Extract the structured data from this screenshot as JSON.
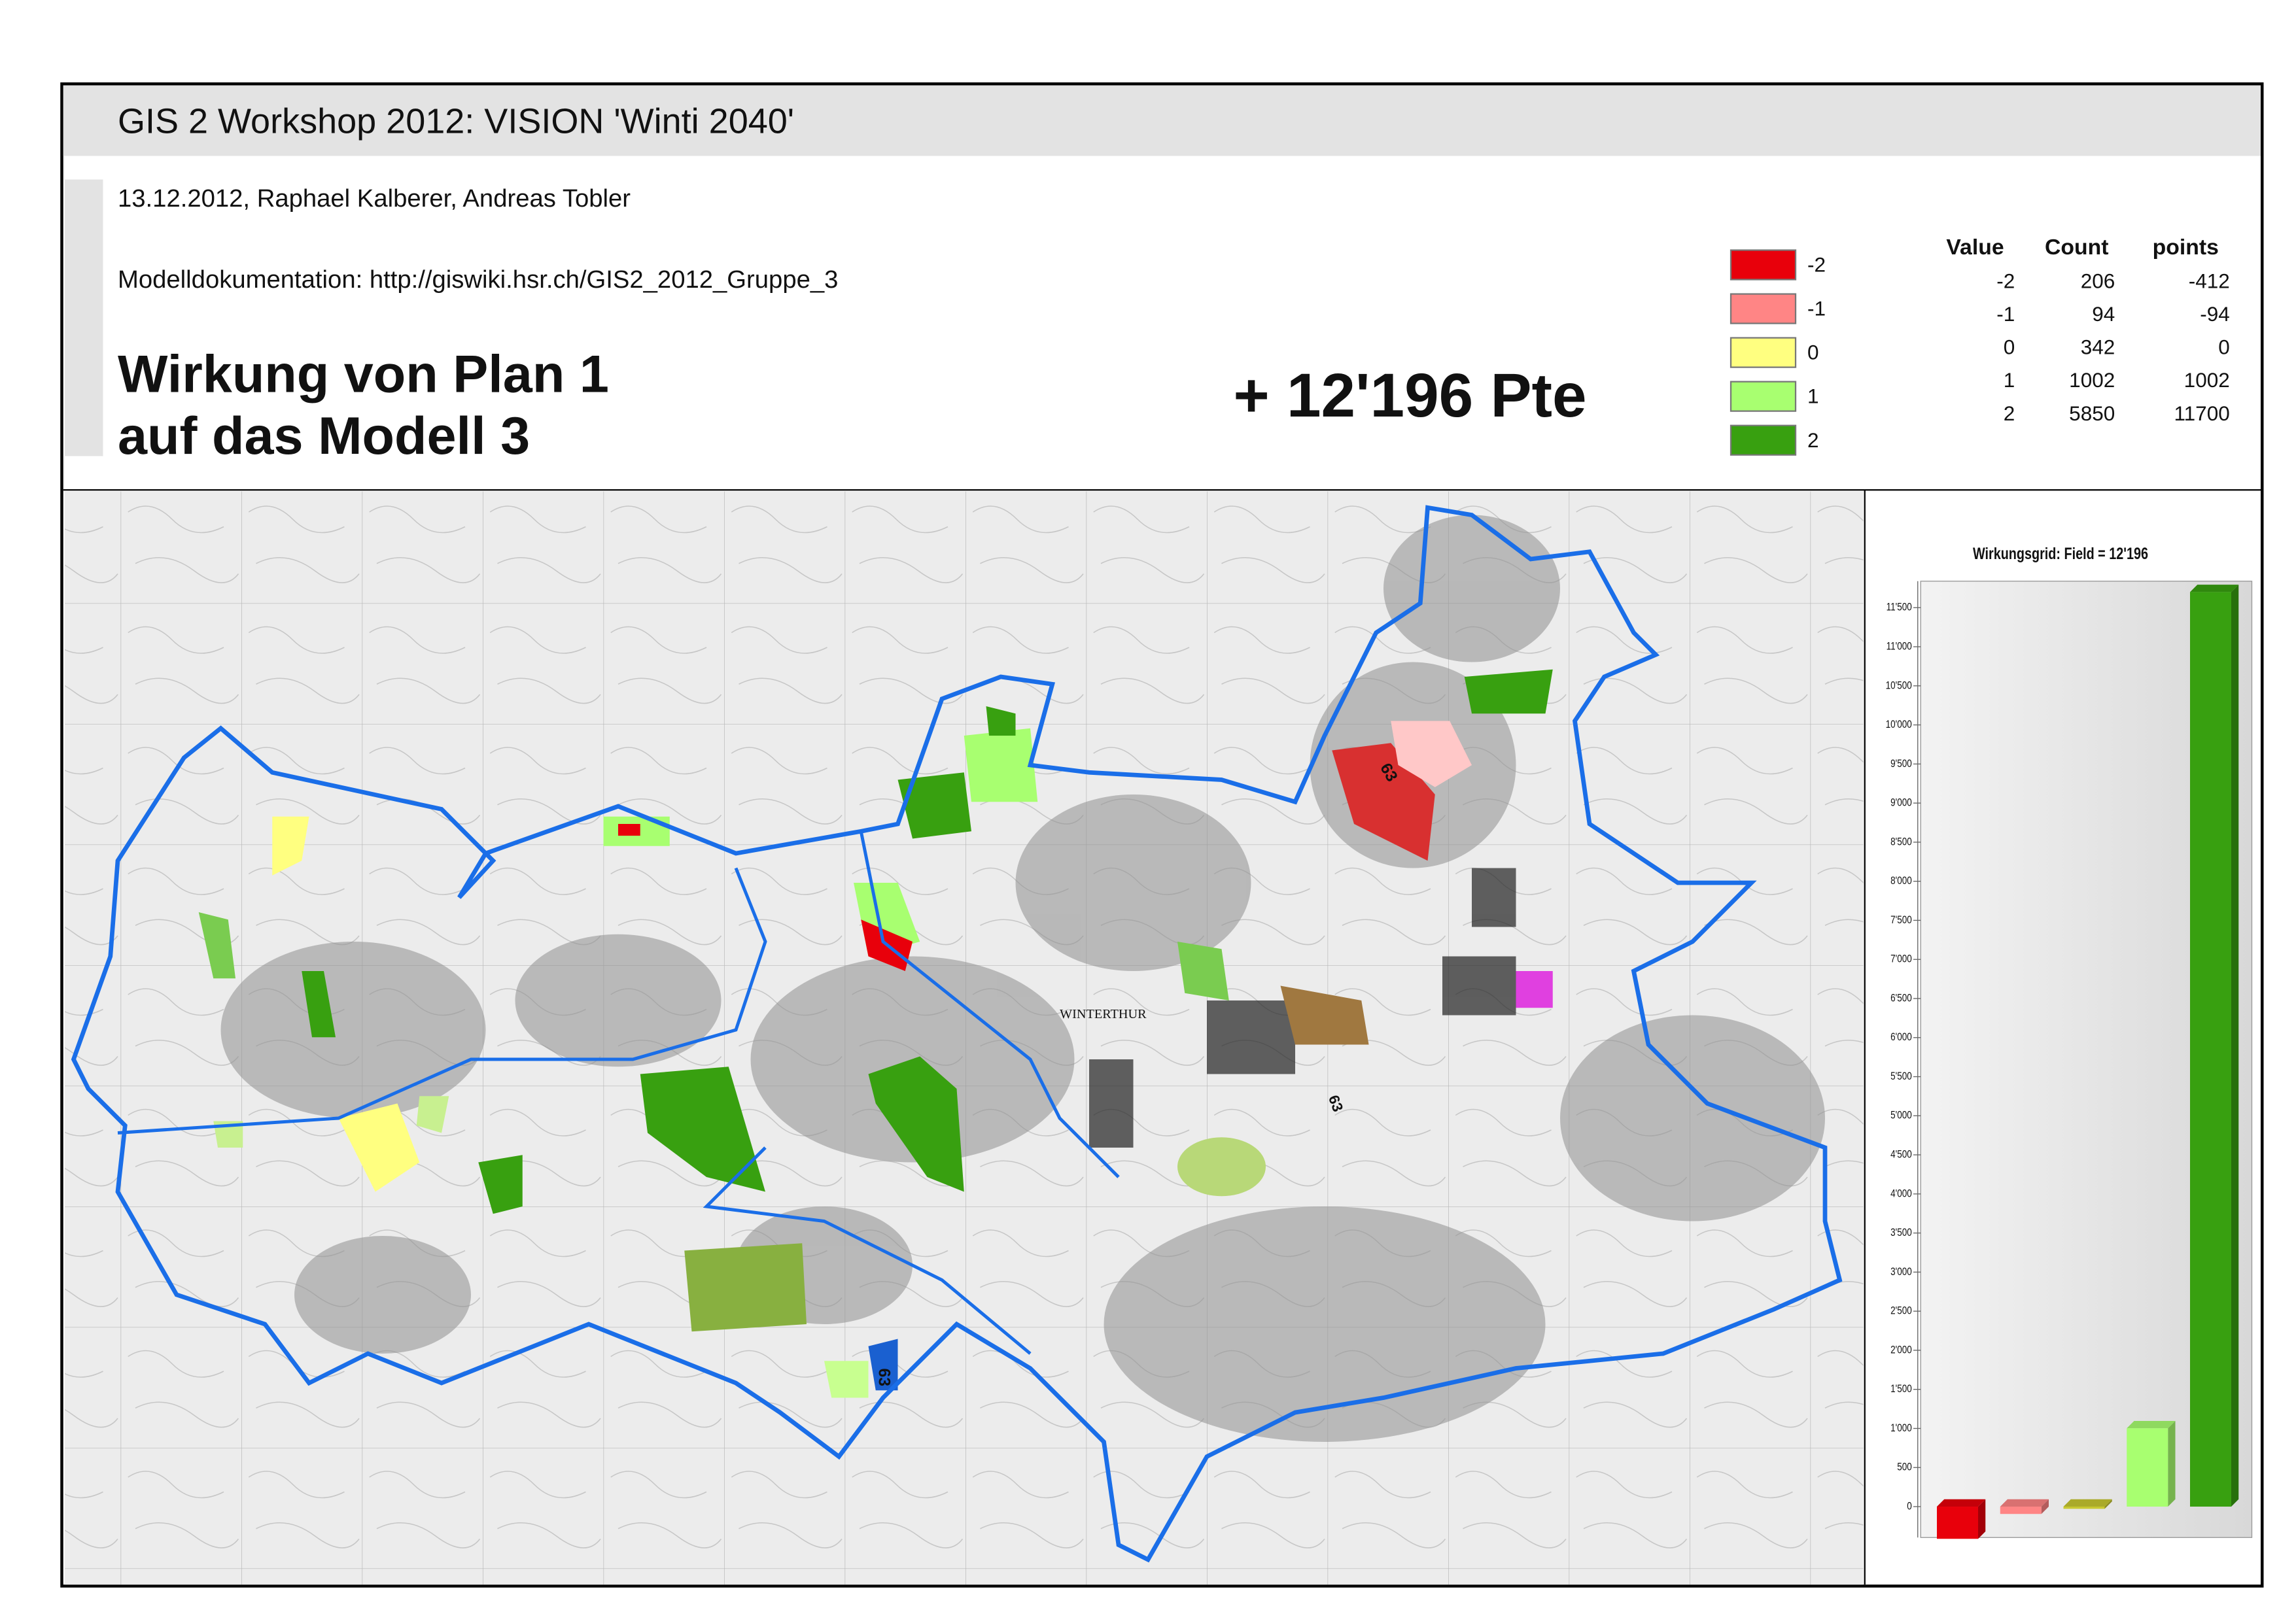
{
  "header": {
    "title": "GIS 2 Workshop 2012: VISION 'Winti 2040'",
    "date_authors": "13.12.2012, Raphael Kalberer, Andreas Tobler",
    "documentation": "Modelldokumentation: http://giswiki.hsr.ch/GIS2_2012_Gruppe_3"
  },
  "headline": [
    "Wirkung von Plan 1",
    "auf das Modell 3"
  ],
  "score": "+ 12'196 Pte",
  "legend": {
    "items": [
      {
        "label": "-2",
        "color": "#e8000b"
      },
      {
        "label": "-1",
        "color": "#ff8585"
      },
      {
        "label": "0",
        "color": "#ffff80"
      },
      {
        "label": "1",
        "color": "#a8ff70"
      },
      {
        "label": "2",
        "color": "#38a010"
      }
    ]
  },
  "stats_table": {
    "columns": [
      "Value",
      "Count",
      "points"
    ],
    "rows": [
      [
        -2,
        206,
        -412
      ],
      [
        -1,
        94,
        -94
      ],
      [
        0,
        342,
        0
      ],
      [
        1,
        1002,
        1002
      ],
      [
        2,
        5850,
        11700
      ]
    ]
  },
  "map": {
    "labels": [
      "WINTERTHUR",
      "63",
      "63",
      "63"
    ]
  },
  "chart_data": {
    "type": "bar",
    "title": "Wirkungsgrid: Field = 12'196",
    "values": [
      -412,
      -94,
      0,
      1002,
      11700
    ],
    "colors": [
      "#e8000b",
      "#ff8585",
      "#c8c830",
      "#a8ff70",
      "#38a010"
    ],
    "ylim": [
      -500,
      12000
    ],
    "yticks": [
      0,
      500,
      {
        "value": 1000,
        "label": "1'000"
      },
      {
        "value": 1500,
        "label": "1'500"
      },
      {
        "value": 2000,
        "label": "2'000"
      },
      {
        "value": 2500,
        "label": "2'500"
      },
      {
        "value": 3000,
        "label": "3'000"
      },
      {
        "value": 3500,
        "label": "3'500"
      },
      {
        "value": 4000,
        "label": "4'000"
      },
      {
        "value": 4500,
        "label": "4'500"
      },
      {
        "value": 5000,
        "label": "5'000"
      },
      {
        "value": 5500,
        "label": "5'500"
      },
      {
        "value": 6000,
        "label": "6'000"
      },
      {
        "value": 6500,
        "label": "6'500"
      },
      {
        "value": 7000,
        "label": "7'000"
      },
      {
        "value": 7500,
        "label": "7'500"
      },
      {
        "value": 8000,
        "label": "8'000"
      },
      {
        "value": 8500,
        "label": "8'500"
      },
      {
        "value": 9000,
        "label": "9'000"
      },
      {
        "value": 9500,
        "label": "9'500"
      },
      {
        "value": 10000,
        "label": "10'000"
      },
      {
        "value": 10500,
        "label": "10'500"
      },
      {
        "value": 11000,
        "label": "11'000"
      },
      {
        "value": 11500,
        "label": "11'500"
      }
    ]
  }
}
